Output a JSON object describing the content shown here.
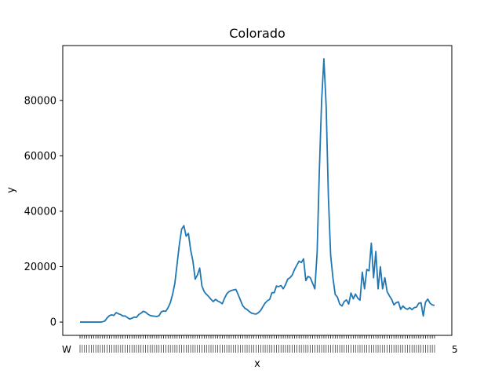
{
  "chart_data": {
    "type": "line",
    "title": "Colorado",
    "xlabel": "x",
    "ylabel": "y",
    "ylim": [
      -4800,
      99800
    ],
    "yticks": [
      0,
      20000,
      40000,
      60000,
      80000
    ],
    "ytick_labels": [
      "0",
      "20000",
      "40000",
      "60000",
      "80000"
    ],
    "x_tick_labels_legible": [
      "W",
      "5"
    ],
    "grid": false,
    "legend": "none",
    "series": [
      {
        "color": "#1f77b4",
        "values": [
          0,
          0,
          0,
          0,
          0,
          0,
          0,
          0,
          0,
          0,
          100,
          400,
          1500,
          2300,
          2600,
          2400,
          3400,
          3000,
          2700,
          2200,
          2200,
          1600,
          1100,
          1400,
          1800,
          1700,
          2700,
          3200,
          3900,
          3600,
          2900,
          2400,
          2200,
          2100,
          2000,
          2300,
          3700,
          4000,
          3900,
          5200,
          7000,
          10000,
          14000,
          21000,
          28000,
          33500,
          34800,
          31000,
          32000,
          26000,
          22000,
          15500,
          17000,
          19500,
          13000,
          11000,
          10000,
          9200,
          8200,
          7400,
          8200,
          7600,
          7200,
          6600,
          8600,
          10200,
          11000,
          11400,
          11600,
          11800,
          10000,
          8000,
          6000,
          5000,
          4500,
          3800,
          3200,
          3000,
          2900,
          3400,
          4200,
          5600,
          6900,
          7700,
          8200,
          10600,
          10600,
          13000,
          12800,
          13200,
          12000,
          13500,
          15500,
          16000,
          17000,
          19000,
          20500,
          22000,
          21500,
          22800,
          15000,
          16500,
          16000,
          14000,
          12000,
          25000,
          55000,
          80000,
          95000,
          78000,
          45000,
          24000,
          16000,
          10000,
          9000,
          6500,
          5800,
          7400,
          8000,
          6500,
          10500,
          8400,
          10100,
          8600,
          7900,
          18000,
          12000,
          19000,
          18500,
          28500,
          16000,
          25500,
          12000,
          20000,
          12000,
          16000,
          11000,
          9500,
          8200,
          6200,
          7000,
          7300,
          4600,
          5800,
          5000,
          4600,
          5200,
          4500,
          5200,
          5400,
          6800,
          7000,
          2200,
          7200,
          8300,
          6800,
          6200,
          6000
        ]
      }
    ]
  }
}
